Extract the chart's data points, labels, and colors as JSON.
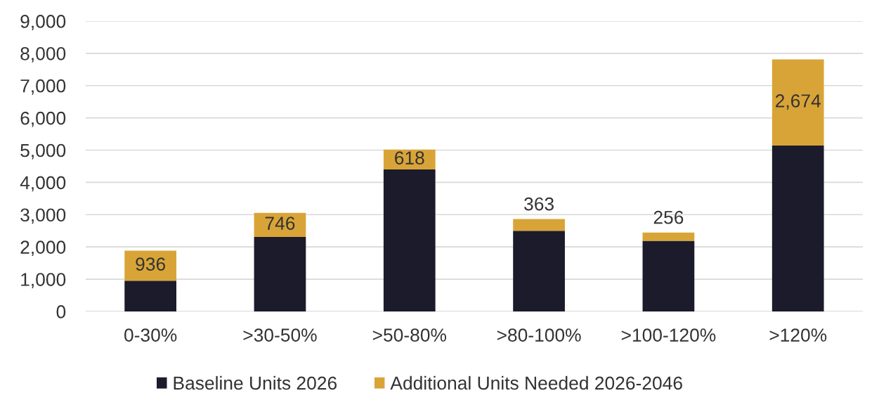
{
  "chart_data": {
    "type": "bar",
    "stacked": true,
    "categories": [
      "0-30%",
      ">30-50%",
      ">50-80%",
      ">80-100%",
      ">100-120%",
      ">120%"
    ],
    "series": [
      {
        "name": "Baseline Units 2026",
        "color": "#1c1b2b",
        "values": [
          950,
          2310,
          4400,
          2500,
          2190,
          5140
        ]
      },
      {
        "name": "Additional Units Needed 2026-2046",
        "color": "#d9a437",
        "values": [
          936,
          746,
          618,
          363,
          256,
          2674
        ],
        "value_labels": [
          "936",
          "746",
          "618",
          "363",
          "256",
          "2,674"
        ]
      }
    ],
    "ylim": [
      0,
      9000
    ],
    "yticks": [
      0,
      {
        "value": 1000,
        "label": "1,000"
      },
      {
        "value": 2000,
        "label": "2,000"
      },
      {
        "value": 3000,
        "label": "3,000"
      },
      {
        "value": 4000,
        "label": "4,000"
      },
      {
        "value": 5000,
        "label": "5,000"
      },
      {
        "value": 6000,
        "label": "6,000"
      },
      {
        "value": 7000,
        "label": "7,000"
      },
      {
        "value": 8000,
        "label": "8,000"
      },
      {
        "value": 9000,
        "label": "9,000"
      }
    ],
    "grid": "y",
    "legend": "bottom"
  }
}
